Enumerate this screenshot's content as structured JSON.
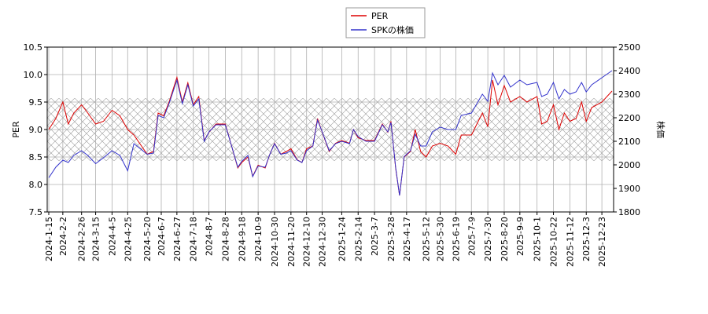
{
  "chart_data": {
    "type": "line",
    "ylabel": "PER",
    "y2label": "株価",
    "x": [
      "2024-01-15",
      "2024-01-24",
      "2024-02-02",
      "2024-02-09",
      "2024-02-16",
      "2024-02-26",
      "2024-03-05",
      "2024-03-15",
      "2024-03-25",
      "2024-04-05",
      "2024-04-15",
      "2024-04-25",
      "2024-05-03",
      "2024-05-20",
      "2024-05-28",
      "2024-06-03",
      "2024-06-10",
      "2024-06-17",
      "2024-06-27",
      "2024-07-04",
      "2024-07-11",
      "2024-07-18",
      "2024-07-25",
      "2024-08-01",
      "2024-08-07",
      "2024-08-16",
      "2024-08-28",
      "2024-09-05",
      "2024-09-13",
      "2024-09-18",
      "2024-09-26",
      "2024-10-02",
      "2024-10-09",
      "2024-10-18",
      "2024-10-24",
      "2024-10-30",
      "2024-11-07",
      "2024-11-14",
      "2024-11-20",
      "2024-11-28",
      "2024-12-04",
      "2024-12-10",
      "2024-12-18",
      "2024-12-24",
      "2024-12-30",
      "2025-01-08",
      "2025-01-16",
      "2025-01-24",
      "2025-02-03",
      "2025-02-08",
      "2025-02-14",
      "2025-02-24",
      "2025-03-07",
      "2025-03-17",
      "2025-03-24",
      "2025-03-28",
      "2025-04-03",
      "2025-04-08",
      "2025-04-14",
      "2025-04-22",
      "2025-04-28",
      "2025-05-05",
      "2025-05-12",
      "2025-05-20",
      "2025-05-30",
      "2025-06-09",
      "2025-06-19",
      "2025-06-26",
      "2025-07-09",
      "2025-07-16",
      "2025-07-23",
      "2025-07-30",
      "2025-08-05",
      "2025-08-12",
      "2025-08-20",
      "2025-08-28",
      "2025-09-09",
      "2025-09-18",
      "2025-10-01",
      "2025-10-07",
      "2025-10-14",
      "2025-10-22",
      "2025-10-29",
      "2025-11-05",
      "2025-11-12",
      "2025-11-20",
      "2025-11-27",
      "2025-12-03",
      "2025-12-10",
      "2025-12-23",
      "2026-01-05"
    ],
    "series": [
      {
        "name": "PER",
        "color": "#dd0000",
        "values": [
          9.0,
          9.2,
          9.5,
          9.1,
          9.3,
          9.45,
          9.3,
          9.1,
          9.15,
          9.35,
          9.25,
          9.0,
          8.9,
          8.55,
          8.6,
          9.3,
          9.25,
          9.5,
          9.95,
          9.5,
          9.85,
          9.45,
          9.6,
          8.8,
          8.95,
          9.1,
          9.1,
          8.7,
          8.3,
          8.4,
          8.5,
          8.15,
          8.35,
          8.3,
          8.55,
          8.75,
          8.55,
          8.6,
          8.65,
          8.45,
          8.4,
          8.65,
          8.7,
          9.2,
          8.95,
          8.6,
          8.75,
          8.8,
          8.75,
          9.0,
          8.85,
          8.8,
          8.8,
          9.1,
          8.95,
          9.15,
          8.3,
          7.8,
          8.5,
          8.6,
          9.0,
          8.6,
          8.5,
          8.7,
          8.75,
          8.7,
          8.55,
          8.9,
          8.9,
          9.1,
          9.3,
          9.05,
          9.9,
          9.45,
          9.8,
          9.5,
          9.6,
          9.5,
          9.6,
          9.1,
          9.15,
          9.45,
          9.0,
          9.3,
          9.15,
          9.2,
          9.5,
          9.15,
          9.4,
          9.5,
          9.7
        ]
      },
      {
        "name": "SPKの株価",
        "color": "#3333cc",
        "axis": "y2",
        "values": [
          1945,
          1990,
          2020,
          2010,
          2040,
          2060,
          2040,
          2005,
          2030,
          2060,
          2040,
          1975,
          2090,
          2045,
          2050,
          2210,
          2200,
          2260,
          2360,
          2260,
          2340,
          2250,
          2280,
          2100,
          2140,
          2170,
          2170,
          2080,
          1990,
          2015,
          2040,
          1950,
          1995,
          1990,
          2045,
          2090,
          2045,
          2050,
          2060,
          2020,
          2010,
          2060,
          2080,
          2190,
          2140,
          2060,
          2090,
          2100,
          2090,
          2150,
          2120,
          2100,
          2100,
          2170,
          2140,
          2180,
          1990,
          1870,
          2035,
          2060,
          2130,
          2080,
          2080,
          2140,
          2160,
          2150,
          2150,
          2210,
          2220,
          2260,
          2300,
          2270,
          2390,
          2340,
          2380,
          2330,
          2360,
          2340,
          2350,
          2290,
          2300,
          2350,
          2280,
          2320,
          2300,
          2310,
          2350,
          2310,
          2340,
          2370,
          2400
        ]
      }
    ],
    "xlim": [
      "2024-01-13",
      "2026-01-07"
    ],
    "xticks": [
      {
        "value": "2024-01-15",
        "label": "2024-1-15"
      },
      {
        "value": "2024-02-02",
        "label": "2024-2-2"
      },
      {
        "value": "2024-02-26",
        "label": "2024-2-26"
      },
      {
        "value": "2024-03-15",
        "label": "2024-3-15"
      },
      {
        "value": "2024-04-05",
        "label": "2024-4-5"
      },
      {
        "value": "2024-04-25",
        "label": "2024-4-25"
      },
      {
        "value": "2024-05-20",
        "label": "2024-5-20"
      },
      {
        "value": "2024-06-07",
        "label": "2024-6-7"
      },
      {
        "value": "2024-06-27",
        "label": "2024-6-27"
      },
      {
        "value": "2024-07-18",
        "label": "2024-7-18"
      },
      {
        "value": "2024-08-07",
        "label": "2024-8-7"
      },
      {
        "value": "2024-08-28",
        "label": "2024-8-28"
      },
      {
        "value": "2024-09-18",
        "label": "2024-9-18"
      },
      {
        "value": "2024-10-09",
        "label": "2024-10-9"
      },
      {
        "value": "2024-10-30",
        "label": "2024-10-30"
      },
      {
        "value": "2024-11-20",
        "label": "2024-11-20"
      },
      {
        "value": "2024-12-10",
        "label": "2024-12-10"
      },
      {
        "value": "2024-12-30",
        "label": "2024-12-30"
      },
      {
        "value": "2025-01-24",
        "label": "2025-1-24"
      },
      {
        "value": "2025-02-14",
        "label": "2025-2-14"
      },
      {
        "value": "2025-03-07",
        "label": "2025-3-7"
      },
      {
        "value": "2025-03-28",
        "label": "2025-3-28"
      },
      {
        "value": "2025-04-17",
        "label": "2025-4-17"
      },
      {
        "value": "2025-05-12",
        "label": "2025-5-12"
      },
      {
        "value": "2025-05-30",
        "label": "2025-5-30"
      },
      {
        "value": "2025-06-19",
        "label": "2025-6-19"
      },
      {
        "value": "2025-07-09",
        "label": "2025-7-9"
      },
      {
        "value": "2025-07-30",
        "label": "2025-7-30"
      },
      {
        "value": "2025-08-20",
        "label": "2025-8-20"
      },
      {
        "value": "2025-09-09",
        "label": "2025-9-9"
      },
      {
        "value": "2025-10-01",
        "label": "2025-10-1"
      },
      {
        "value": "2025-10-22",
        "label": "2025-10-22"
      },
      {
        "value": "2025-11-12",
        "label": "2025-11-12"
      },
      {
        "value": "2025-12-03",
        "label": "2025-12-3"
      },
      {
        "value": "2025-12-23",
        "label": "2025-12-23"
      }
    ],
    "ylim": [
      7.5,
      10.5
    ],
    "yticks": [
      7.5,
      {
        "value": 8,
        "label": "8.0"
      },
      8.5,
      {
        "value": 9,
        "label": "9.0"
      },
      9.5,
      {
        "value": 10,
        "label": "10.0"
      },
      10.5
    ],
    "y2lim": [
      1800,
      2500
    ],
    "y2ticks": [
      1800,
      1900,
      2000,
      2100,
      2200,
      2300,
      2400,
      2500
    ],
    "shaded_band": [
      8.43,
      9.57
    ],
    "grid": true,
    "legend": "top"
  }
}
